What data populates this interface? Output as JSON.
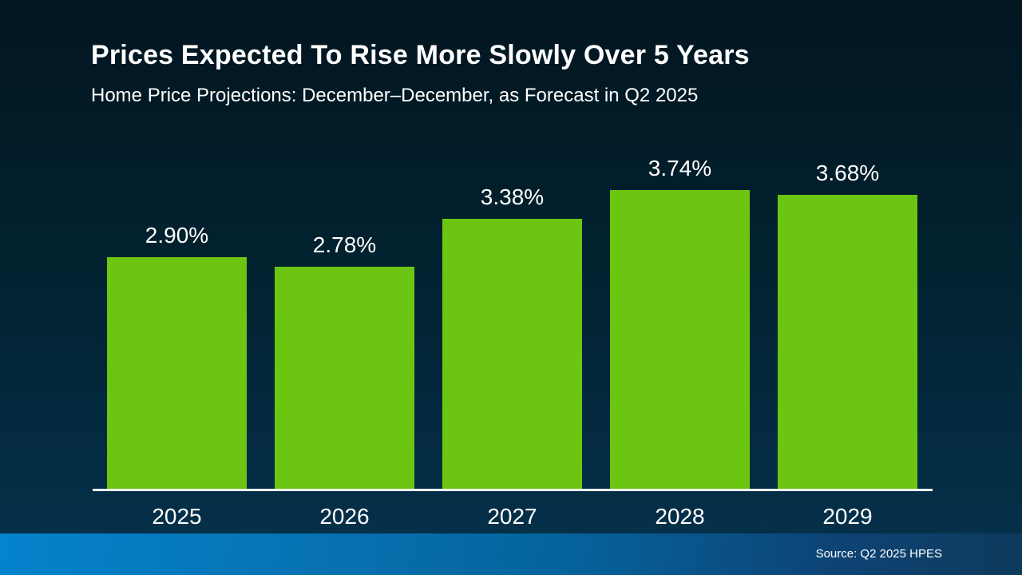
{
  "header": {
    "title": "Prices Expected To Rise More Slowly Over 5 Years",
    "subtitle": "Home Price Projections: December–December, as Forecast in Q2 2025"
  },
  "chart_data": {
    "type": "bar",
    "title": "Prices Expected To Rise More Slowly Over 5 Years",
    "subtitle": "Home Price Projections: December–December, as Forecast in Q2 2025",
    "categories": [
      "2025",
      "2026",
      "2027",
      "2028",
      "2029"
    ],
    "values": [
      2.9,
      2.78,
      3.38,
      3.74,
      3.68
    ],
    "value_labels": [
      "2.90%",
      "2.78%",
      "3.38%",
      "3.74%",
      "3.68%"
    ],
    "xlabel": "",
    "ylabel": "",
    "ylim": [
      0,
      4
    ],
    "grid": false,
    "legend_position": "none",
    "bar_color": "#6cc611",
    "label_color": "#ffffff",
    "axis_color": "#ffffff"
  },
  "footer": {
    "source": "Source: Q2 2025 HPES"
  },
  "colors": {
    "background_top": "#021520",
    "background_bottom": "#053049",
    "footer_gradient_left": "#0583cd",
    "footer_gradient_right": "#0e3a5c",
    "bar_green": "#6cc611",
    "text_white": "#ffffff"
  }
}
